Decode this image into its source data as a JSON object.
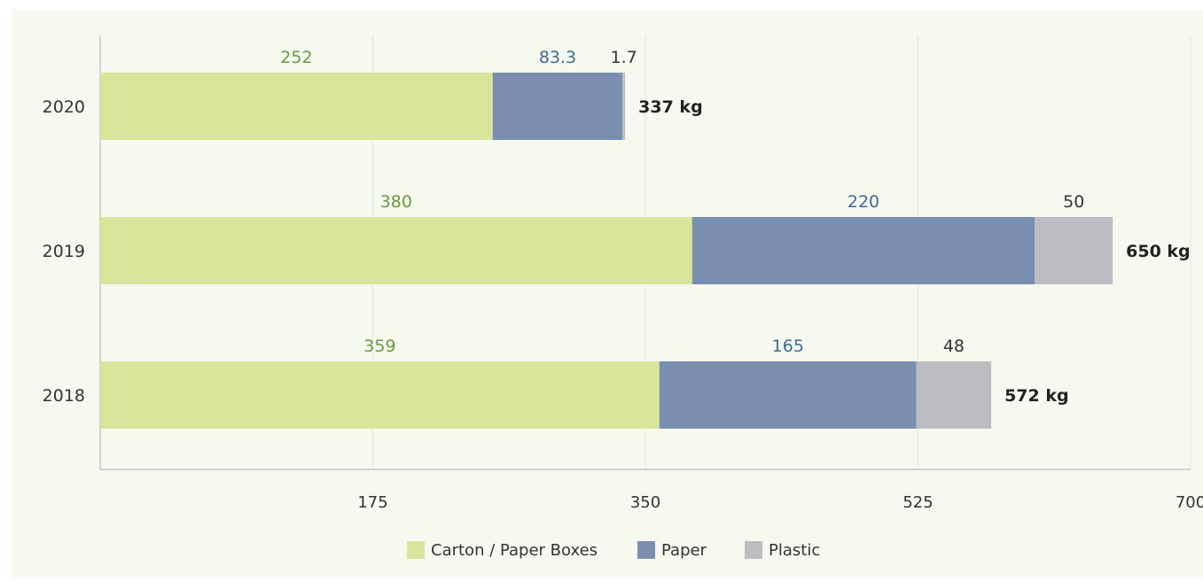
{
  "chart_data": {
    "type": "bar",
    "orientation": "horizontal",
    "stacked": true,
    "categories": [
      "2020",
      "2019",
      "2018"
    ],
    "series": [
      {
        "name": "Carton / Paper Boxes",
        "color": "#d8e69c",
        "label_color": "#6a9a3c",
        "values": [
          252,
          380,
          359
        ],
        "labels": [
          "252",
          "380",
          "359"
        ]
      },
      {
        "name": "Paper",
        "color": "#7a8fb0",
        "label_color": "#3c6c96",
        "values": [
          83.3,
          220,
          165
        ],
        "labels": [
          "83.3",
          "220",
          "165"
        ]
      },
      {
        "name": "Plastic",
        "color": "#bcbdc0",
        "label_color": "#333333",
        "values": [
          1.7,
          50,
          48
        ],
        "labels": [
          "1.7",
          "50",
          "48"
        ]
      }
    ],
    "totals": [
      "337 kg",
      "650 kg",
      "572 kg"
    ],
    "xlim": [
      0,
      700
    ],
    "x_ticks": [
      175,
      350,
      525,
      700
    ],
    "x_tick_labels": [
      "175",
      "350",
      "525",
      "700"
    ],
    "grid": true,
    "legend_position": "bottom-center",
    "colors": {
      "background": "#f6f9f0",
      "grid": "#e3e6de",
      "axis": "#cfd3cc",
      "text": "#333333",
      "total_text": "#222222"
    }
  }
}
